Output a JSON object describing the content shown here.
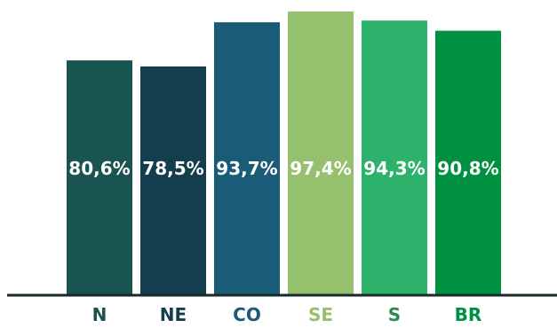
{
  "chart_data": {
    "type": "bar",
    "title": "",
    "xlabel": "",
    "ylabel": "",
    "categories": [
      "N",
      "NE",
      "CO",
      "SE",
      "S",
      "BR"
    ],
    "bar_heights": [
      80.6,
      78.5,
      93.7,
      97.4,
      94.3,
      90.8
    ],
    "value_labels": [
      "80,6%",
      "78,5%",
      "93,7%",
      "97,4%",
      "94,3%",
      "90,8%"
    ],
    "bar_colors": [
      "#1a5450",
      "#143e4e",
      "#1a5c77",
      "#95c06e",
      "#2db26c",
      "#009140"
    ],
    "label_colors": [
      "#1a5450",
      "#143e4e",
      "#1a5c77",
      "#95c06e",
      "#2a8a53",
      "#009140"
    ],
    "axis_color": "#1a2a2a",
    "grid": false,
    "legend": "none"
  }
}
